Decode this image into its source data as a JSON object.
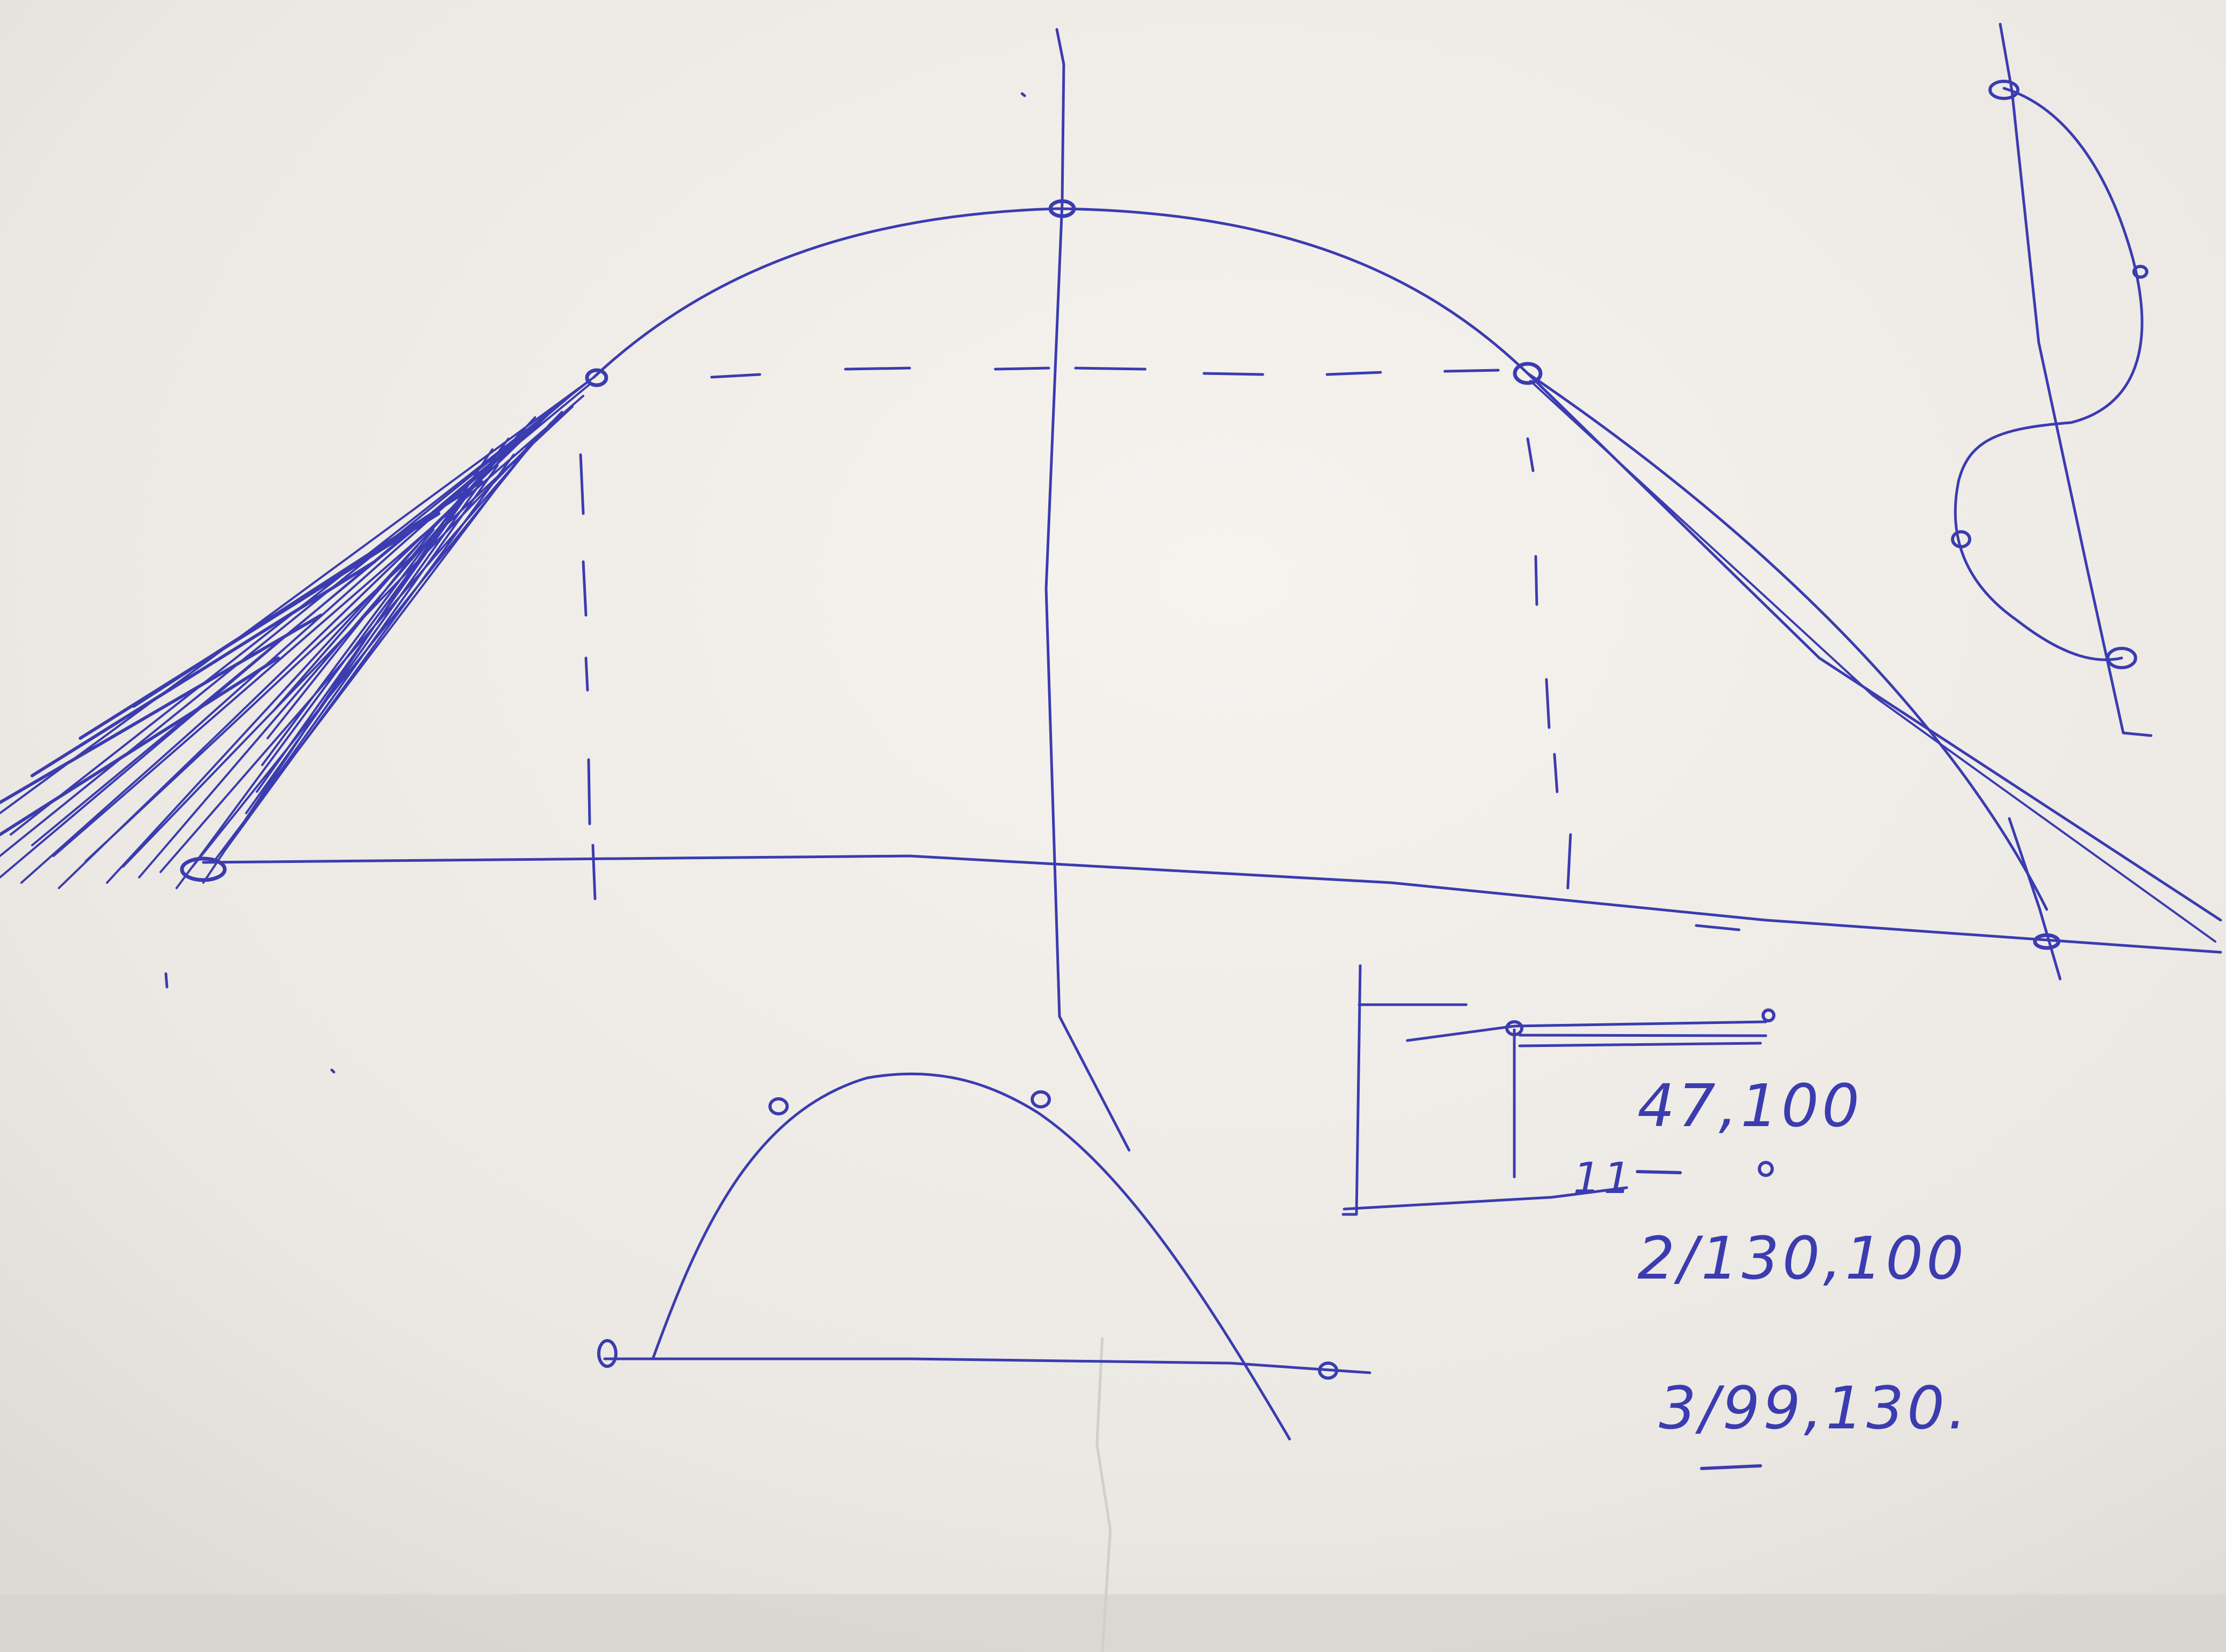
{
  "sheet": {
    "paper_color": "#ece9e4",
    "ink_color": "#3b3cb0"
  },
  "notes": {
    "line1": "47,100",
    "line1_mark": "11",
    "line2": "2/130,100",
    "line3": "3/99,130."
  }
}
